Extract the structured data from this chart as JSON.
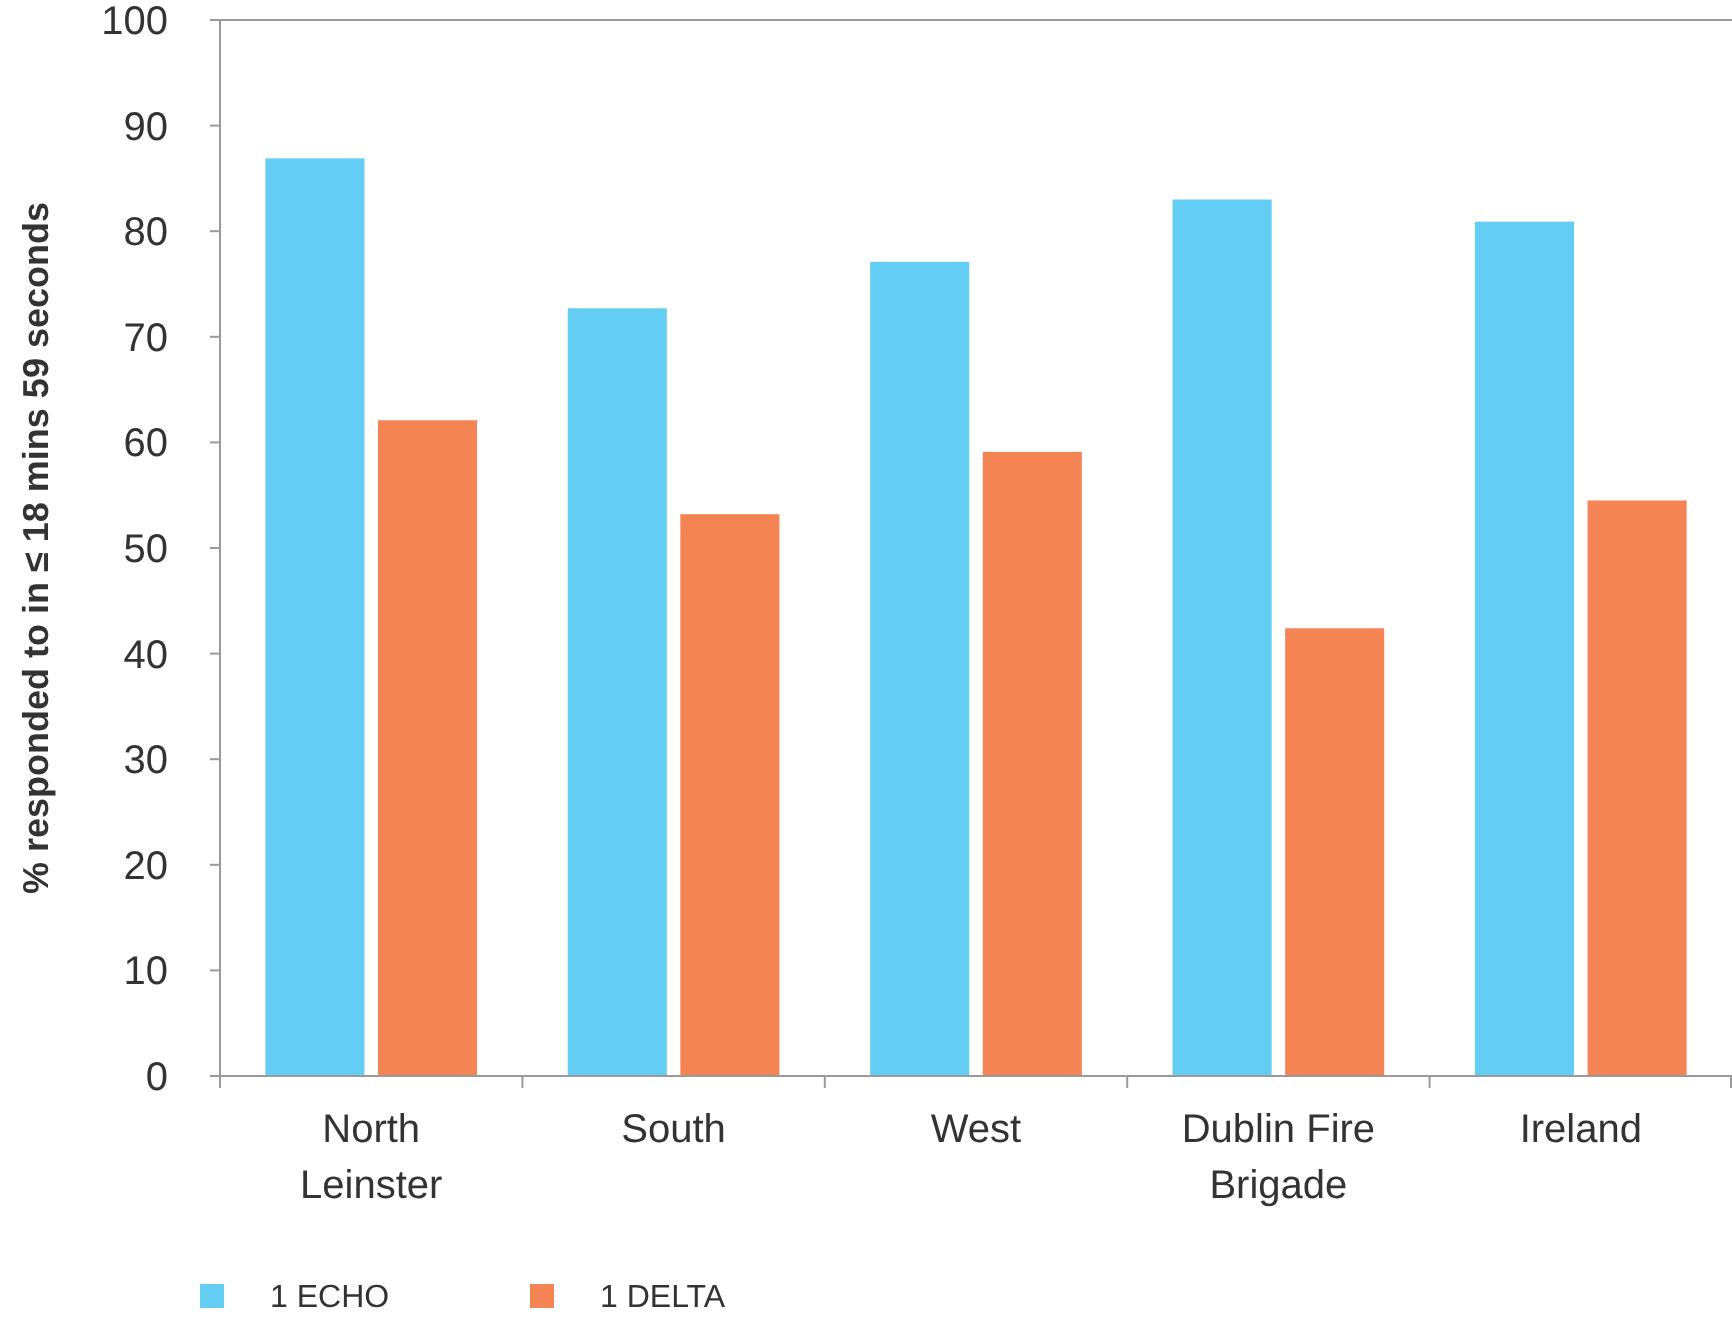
{
  "chart_data": {
    "type": "bar",
    "ylabel": "% responded to in ≤ 18 mins 59 seconds",
    "categories": [
      "North Leinster",
      "South",
      "West",
      "Dublin Fire Brigade",
      "Ireland"
    ],
    "series": [
      {
        "name": "1 ECHO",
        "color": "#63cdf3",
        "values": [
          86.9,
          72.7,
          77.1,
          83.0,
          80.9
        ]
      },
      {
        "name": "1 DELTA",
        "color": "#f48454",
        "values": [
          62.1,
          53.2,
          59.1,
          42.4,
          54.5
        ]
      }
    ],
    "ylim": [
      0,
      100
    ],
    "yticks": [
      0,
      10,
      20,
      30,
      40,
      50,
      60,
      70,
      80,
      90,
      100
    ],
    "grid": false,
    "legend": "bottom"
  }
}
